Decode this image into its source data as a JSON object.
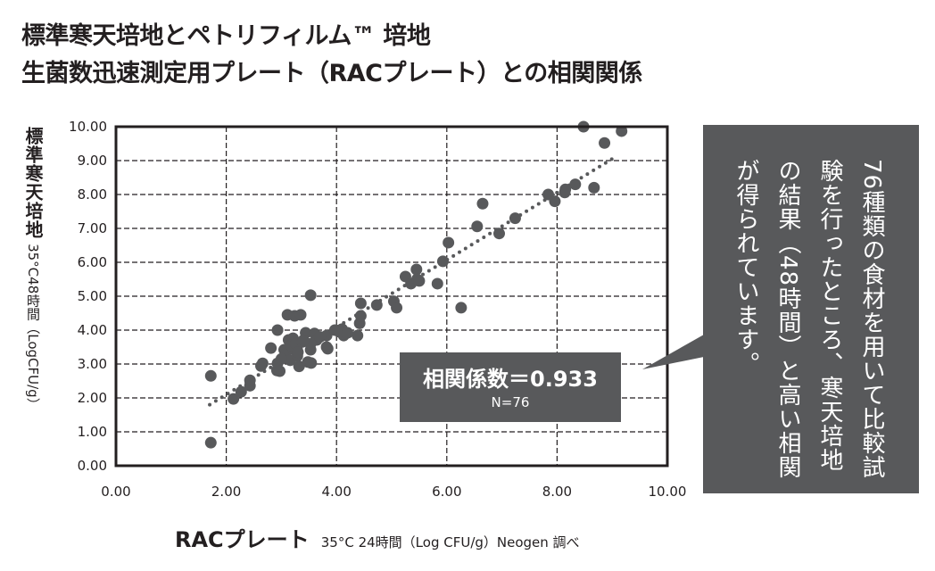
{
  "title": {
    "line1": "標準寒天培地とペトリフィルム™ 培地",
    "line2": "生菌数迅速測定用プレート（RACプレート）との相関関係"
  },
  "callout": {
    "text": "76種類の食材を用いて比較試験を行ったところ、寒天培地の結果（48時間）と高い相関が得られています。",
    "color": "#58595b"
  },
  "correlation_box": {
    "value": "相関係数＝0.933",
    "n": "N=76"
  },
  "chart_data": {
    "type": "scatter",
    "title": "標準寒天培地とペトリフィルム™ 培地 生菌数迅速測定用プレート（RACプレート）との相関関係",
    "xlabel": "RACプレート",
    "xlabel_sub": "35°C 24時間（Log CFU/g）Neogen 調べ",
    "ylabel": "標準寒天培地",
    "ylabel_sub": "35°C48時間（LogCFU/g）",
    "xlim": [
      0,
      10
    ],
    "ylim": [
      0,
      10
    ],
    "xticks": [
      "0.00",
      "2.00",
      "4.00",
      "6.00",
      "8.00",
      "10.00"
    ],
    "yticks": [
      "0.00",
      "1.00",
      "2.00",
      "3.00",
      "4.00",
      "5.00",
      "6.00",
      "7.00",
      "8.00",
      "9.00",
      "10.00"
    ],
    "grid": true,
    "marker_color": "#58595b",
    "trendline": {
      "x": [
        1.7,
        9.05
      ],
      "y": [
        1.8,
        9.1
      ],
      "style": "dotted"
    },
    "x": [
      1.72,
      1.72,
      2.13,
      2.27,
      2.43,
      2.43,
      2.63,
      2.66,
      2.81,
      2.93,
      2.92,
      2.93,
      2.97,
      3.05,
      3.08,
      3.11,
      3.13,
      3.16,
      3.21,
      3.24,
      3.21,
      3.29,
      3.32,
      3.35,
      3.18,
      3.26,
      3.3,
      3.38,
      3.44,
      3.48,
      3.53,
      3.53,
      3.54,
      3.6,
      3.64,
      3.53,
      3.82,
      3.84,
      3.82,
      3.97,
      4.1,
      4.13,
      4.05,
      4.38,
      4.42,
      4.44,
      4.44,
      4.73,
      5.04,
      5.09,
      5.25,
      5.35,
      5.45,
      5.46,
      5.5,
      5.83,
      5.93,
      6.03,
      6.26,
      6.55,
      6.65,
      6.95,
      7.24,
      7.84,
      7.96,
      8.14,
      8.15,
      8.33,
      8.67,
      8.86,
      8.48,
      9.17,
      3.0,
      3.4,
      3.7,
      4.2
    ],
    "y": [
      2.65,
      0.68,
      1.97,
      2.18,
      2.36,
      2.52,
      2.94,
      3.02,
      3.47,
      4.0,
      2.81,
      3.02,
      2.79,
      3.42,
      3.3,
      4.45,
      3.71,
      3.11,
      3.45,
      4.42,
      3.76,
      3.24,
      2.93,
      4.45,
      3.55,
      3.6,
      3.35,
      3.65,
      3.92,
      3.06,
      5.03,
      3.42,
      3.03,
      3.9,
      3.71,
      3.6,
      3.84,
      3.45,
      3.5,
      4.0,
      4.03,
      3.84,
      3.95,
      3.84,
      4.2,
      4.79,
      4.42,
      4.74,
      4.85,
      4.66,
      5.58,
      5.37,
      5.79,
      5.5,
      5.45,
      5.37,
      6.03,
      6.58,
      4.66,
      7.06,
      7.73,
      6.85,
      7.3,
      8.0,
      7.8,
      8.06,
      8.15,
      8.3,
      8.2,
      9.52,
      10.0,
      9.87,
      3.15,
      3.7,
      3.8,
      3.92
    ]
  }
}
